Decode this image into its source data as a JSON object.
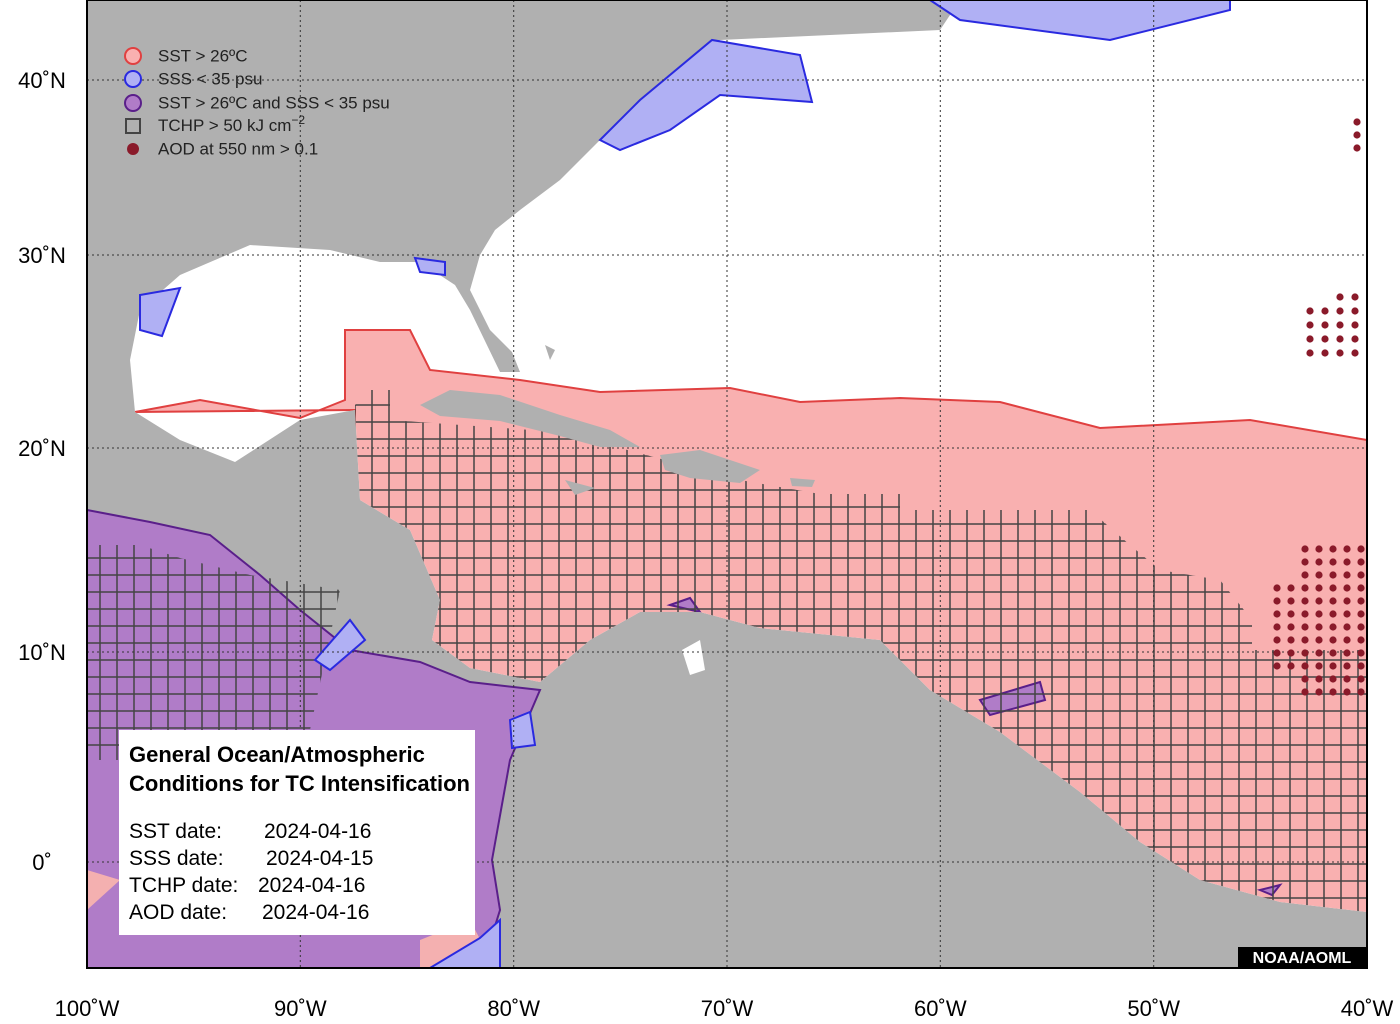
{
  "legend": [
    {
      "label": "SST > 26ºC"
    },
    {
      "label": "SSS < 35 psu"
    },
    {
      "label": "SST > 26ºC and SSS < 35 psu"
    },
    {
      "label": "TCHP > 50 kJ cm",
      "superscript": "−2"
    },
    {
      "label": "AOD at 550 nm > 0.1"
    }
  ],
  "info_box": {
    "title_lines": [
      "General Ocean/Atmospheric",
      "Conditions for TC Intensification"
    ],
    "dates": [
      {
        "label": "SST date:",
        "value": "2024-04-16"
      },
      {
        "label": "SSS date:",
        "value": "2024-04-15"
      },
      {
        "label": "TCHP date:",
        "value": "2024-04-16"
      },
      {
        "label": "AOD date:",
        "value": "2024-04-16"
      }
    ]
  },
  "longitude_labels": [
    "100˚W",
    "90˚W",
    "80˚W",
    "70˚W",
    "60˚W",
    "50˚W",
    "40˚W"
  ],
  "latitude_labels": [
    "40˚N",
    "30˚N",
    "20˚N",
    "10˚N",
    "0˚"
  ],
  "credit": "NOAA/AOML"
}
